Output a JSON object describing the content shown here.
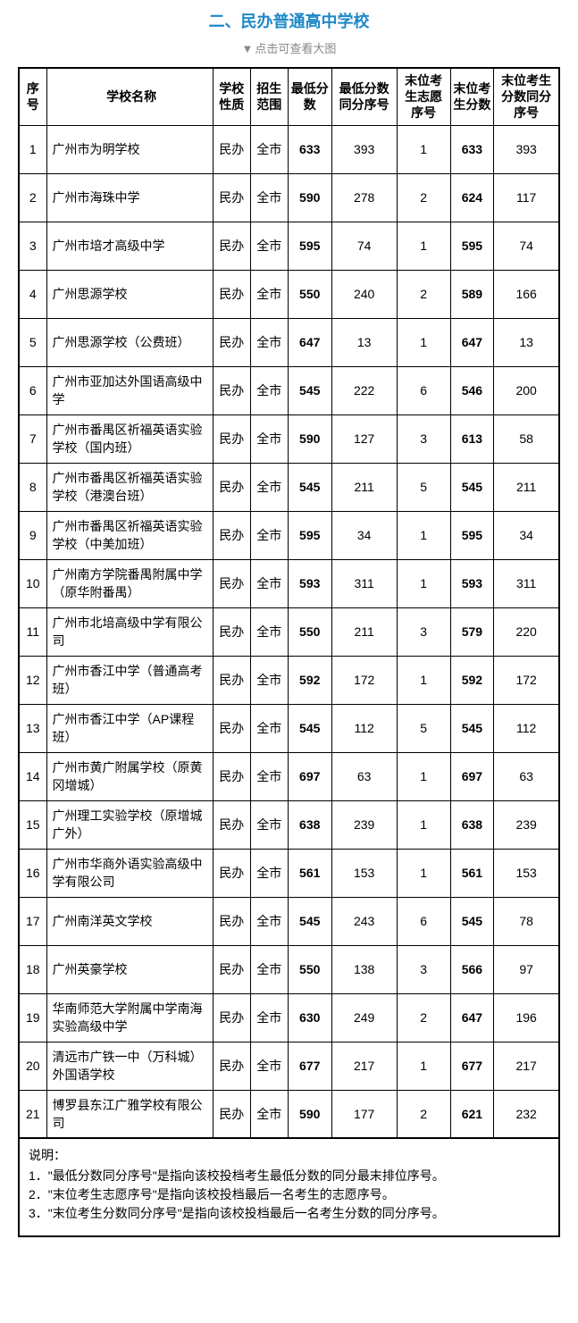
{
  "title": "二、民办普通高中学校",
  "subtitle": "点击可查看大图",
  "headers": {
    "idx": "序号",
    "name": "学校名称",
    "nature": "学校性质",
    "scope": "招生范围",
    "minscore": "最低分数",
    "minrank": "最低分数同分序号",
    "lastwish": "末位考生志愿序号",
    "lastscore": "末位考生分数",
    "lastrank": "末位考生分数同分序号"
  },
  "rows": [
    {
      "idx": "1",
      "name": "广州市为明学校",
      "nature": "民办",
      "scope": "全市",
      "minscore": "633",
      "minrank": "393",
      "lastwish": "1",
      "lastscore": "633",
      "lastrank": "393"
    },
    {
      "idx": "2",
      "name": "广州市海珠中学",
      "nature": "民办",
      "scope": "全市",
      "minscore": "590",
      "minrank": "278",
      "lastwish": "2",
      "lastscore": "624",
      "lastrank": "117"
    },
    {
      "idx": "3",
      "name": "广州市培才高级中学",
      "nature": "民办",
      "scope": "全市",
      "minscore": "595",
      "minrank": "74",
      "lastwish": "1",
      "lastscore": "595",
      "lastrank": "74"
    },
    {
      "idx": "4",
      "name": "广州思源学校",
      "nature": "民办",
      "scope": "全市",
      "minscore": "550",
      "minrank": "240",
      "lastwish": "2",
      "lastscore": "589",
      "lastrank": "166"
    },
    {
      "idx": "5",
      "name": "广州思源学校（公费班）",
      "nature": "民办",
      "scope": "全市",
      "minscore": "647",
      "minrank": "13",
      "lastwish": "1",
      "lastscore": "647",
      "lastrank": "13"
    },
    {
      "idx": "6",
      "name": "广州市亚加达外国语高级中学",
      "nature": "民办",
      "scope": "全市",
      "minscore": "545",
      "minrank": "222",
      "lastwish": "6",
      "lastscore": "546",
      "lastrank": "200"
    },
    {
      "idx": "7",
      "name": "广州市番禺区祈福英语实验学校（国内班）",
      "nature": "民办",
      "scope": "全市",
      "minscore": "590",
      "minrank": "127",
      "lastwish": "3",
      "lastscore": "613",
      "lastrank": "58"
    },
    {
      "idx": "8",
      "name": "广州市番禺区祈福英语实验学校（港澳台班）",
      "nature": "民办",
      "scope": "全市",
      "minscore": "545",
      "minrank": "211",
      "lastwish": "5",
      "lastscore": "545",
      "lastrank": "211"
    },
    {
      "idx": "9",
      "name": "广州市番禺区祈福英语实验学校（中美加班）",
      "nature": "民办",
      "scope": "全市",
      "minscore": "595",
      "minrank": "34",
      "lastwish": "1",
      "lastscore": "595",
      "lastrank": "34"
    },
    {
      "idx": "10",
      "name": "广州南方学院番禺附属中学（原华附番禺）",
      "nature": "民办",
      "scope": "全市",
      "minscore": "593",
      "minrank": "311",
      "lastwish": "1",
      "lastscore": "593",
      "lastrank": "311"
    },
    {
      "idx": "11",
      "name": "广州市北培高级中学有限公司",
      "nature": "民办",
      "scope": "全市",
      "minscore": "550",
      "minrank": "211",
      "lastwish": "3",
      "lastscore": "579",
      "lastrank": "220"
    },
    {
      "idx": "12",
      "name": "广州市香江中学（普通高考班）",
      "nature": "民办",
      "scope": "全市",
      "minscore": "592",
      "minrank": "172",
      "lastwish": "1",
      "lastscore": "592",
      "lastrank": "172"
    },
    {
      "idx": "13",
      "name": "广州市香江中学（AP课程班）",
      "nature": "民办",
      "scope": "全市",
      "minscore": "545",
      "minrank": "112",
      "lastwish": "5",
      "lastscore": "545",
      "lastrank": "112"
    },
    {
      "idx": "14",
      "name": "广州市黄广附属学校（原黄冈增城）",
      "nature": "民办",
      "scope": "全市",
      "minscore": "697",
      "minrank": "63",
      "lastwish": "1",
      "lastscore": "697",
      "lastrank": "63"
    },
    {
      "idx": "15",
      "name": "广州理工实验学校（原增城广外）",
      "nature": "民办",
      "scope": "全市",
      "minscore": "638",
      "minrank": "239",
      "lastwish": "1",
      "lastscore": "638",
      "lastrank": "239"
    },
    {
      "idx": "16",
      "name": "广州市华商外语实验高级中学有限公司",
      "nature": "民办",
      "scope": "全市",
      "minscore": "561",
      "minrank": "153",
      "lastwish": "1",
      "lastscore": "561",
      "lastrank": "153"
    },
    {
      "idx": "17",
      "name": "广州南洋英文学校",
      "nature": "民办",
      "scope": "全市",
      "minscore": "545",
      "minrank": "243",
      "lastwish": "6",
      "lastscore": "545",
      "lastrank": "78"
    },
    {
      "idx": "18",
      "name": "广州英豪学校",
      "nature": "民办",
      "scope": "全市",
      "minscore": "550",
      "minrank": "138",
      "lastwish": "3",
      "lastscore": "566",
      "lastrank": "97"
    },
    {
      "idx": "19",
      "name": "华南师范大学附属中学南海实验高级中学",
      "nature": "民办",
      "scope": "全市",
      "minscore": "630",
      "minrank": "249",
      "lastwish": "2",
      "lastscore": "647",
      "lastrank": "196"
    },
    {
      "idx": "20",
      "name": "清远市广铁一中（万科城）外国语学校",
      "nature": "民办",
      "scope": "全市",
      "minscore": "677",
      "minrank": "217",
      "lastwish": "1",
      "lastscore": "677",
      "lastrank": "217"
    },
    {
      "idx": "21",
      "name": "博罗县东江广雅学校有限公司",
      "nature": "民办",
      "scope": "全市",
      "minscore": "590",
      "minrank": "177",
      "lastwish": "2",
      "lastscore": "621",
      "lastrank": "232"
    }
  ],
  "notes": {
    "title": "说明：",
    "line1": "1．\"最低分数同分序号\"是指向该校投档考生最低分数的同分最末排位序号。",
    "line2": "2．\"末位考生志愿序号\"是指向该校投档最后一名考生的志愿序号。",
    "line3": "3．\"末位考生分数同分序号\"是指向该校投档最后一名考生分数的同分序号。"
  },
  "colors": {
    "title_color": "#1e88c7",
    "subtitle_color": "#888888",
    "border_color": "#000000",
    "background": "#ffffff"
  }
}
